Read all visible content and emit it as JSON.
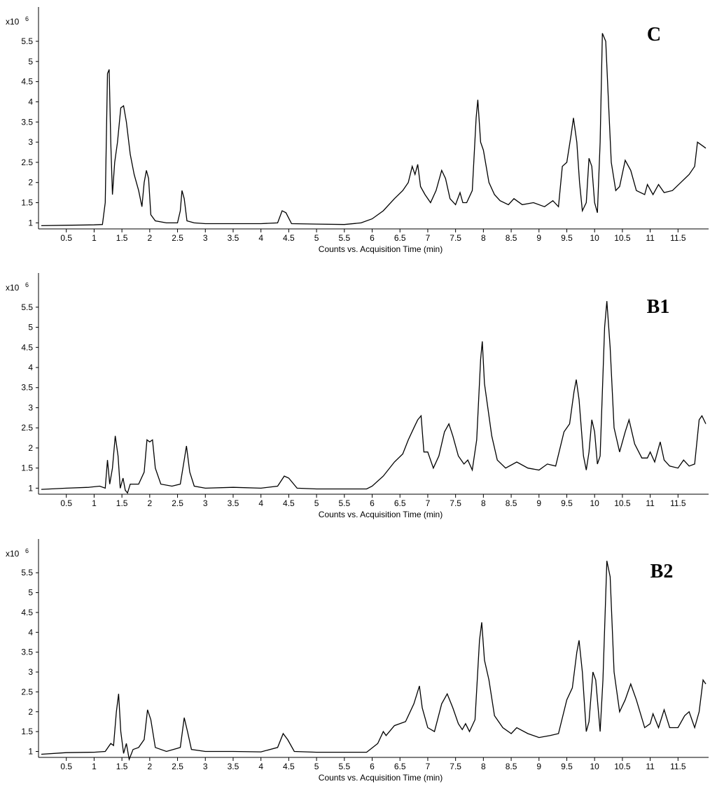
{
  "chart_data": [
    {
      "type": "line",
      "title": "C",
      "x_label": "Counts vs. Acquisition Time (min)",
      "y_label": "x10",
      "y_label_exponent": "6",
      "color": "#000000",
      "xlim": [
        0,
        12.05
      ],
      "ylim": [
        0.85,
        6.35
      ],
      "xticks": [
        0.5,
        1,
        1.5,
        2,
        2.5,
        3,
        3.5,
        4,
        4.5,
        5,
        5.5,
        6,
        6.5,
        7,
        7.5,
        8,
        8.5,
        9,
        9.5,
        10,
        10.5,
        11,
        11.5
      ],
      "yticks": [
        1,
        1.5,
        2,
        2.5,
        3,
        3.5,
        4,
        4.5,
        5,
        5.5
      ],
      "x": [
        0.05,
        0.5,
        1.0,
        1.15,
        1.2,
        1.24,
        1.27,
        1.3,
        1.33,
        1.37,
        1.42,
        1.48,
        1.53,
        1.58,
        1.65,
        1.72,
        1.8,
        1.86,
        1.9,
        1.94,
        1.98,
        2.02,
        2.1,
        2.3,
        2.5,
        2.55,
        2.58,
        2.62,
        2.67,
        2.8,
        3.0,
        3.5,
        4.0,
        4.3,
        4.38,
        4.45,
        4.55,
        5.0,
        5.5,
        5.8,
        6.0,
        6.2,
        6.4,
        6.55,
        6.65,
        6.72,
        6.77,
        6.82,
        6.87,
        6.95,
        7.05,
        7.15,
        7.25,
        7.32,
        7.4,
        7.5,
        7.58,
        7.63,
        7.7,
        7.8,
        7.87,
        7.9,
        7.95,
        8.0,
        8.1,
        8.2,
        8.3,
        8.45,
        8.55,
        8.7,
        8.9,
        9.1,
        9.25,
        9.35,
        9.42,
        9.5,
        9.58,
        9.62,
        9.68,
        9.73,
        9.78,
        9.85,
        9.9,
        9.95,
        10.0,
        10.05,
        10.1,
        10.14,
        10.2,
        10.25,
        10.3,
        10.38,
        10.45,
        10.55,
        10.65,
        10.75,
        10.9,
        10.95,
        11.05,
        11.15,
        11.25,
        11.4,
        11.55,
        11.7,
        11.8,
        11.85,
        11.95,
        12.0
      ],
      "values": [
        0.93,
        0.94,
        0.95,
        0.96,
        1.5,
        4.7,
        4.8,
        3.0,
        1.7,
        2.5,
        3.0,
        3.85,
        3.9,
        3.5,
        2.7,
        2.2,
        1.8,
        1.4,
        2.0,
        2.3,
        2.1,
        1.2,
        1.05,
        1.0,
        1.0,
        1.3,
        1.8,
        1.6,
        1.05,
        1.0,
        0.98,
        0.98,
        0.98,
        1.0,
        1.3,
        1.25,
        0.98,
        0.97,
        0.96,
        1.0,
        1.1,
        1.3,
        1.6,
        1.8,
        2.0,
        2.4,
        2.2,
        2.45,
        1.9,
        1.7,
        1.5,
        1.8,
        2.3,
        2.1,
        1.6,
        1.45,
        1.75,
        1.5,
        1.5,
        1.8,
        3.6,
        4.05,
        3.0,
        2.8,
        2.0,
        1.7,
        1.55,
        1.45,
        1.6,
        1.45,
        1.5,
        1.4,
        1.55,
        1.4,
        2.4,
        2.5,
        3.2,
        3.6,
        3.0,
        2.0,
        1.3,
        1.5,
        2.6,
        2.4,
        1.5,
        1.25,
        3.0,
        5.7,
        5.5,
        4.0,
        2.5,
        1.8,
        1.9,
        2.55,
        2.3,
        1.8,
        1.7,
        1.95,
        1.7,
        1.95,
        1.75,
        1.8,
        2.0,
        2.2,
        2.4,
        3.0,
        2.9,
        2.85
      ]
    },
    {
      "type": "line",
      "title": "B1",
      "x_label": "Counts vs. Acquisition Time (min)",
      "y_label": "x10",
      "y_label_exponent": "6",
      "color": "#000000",
      "xlim": [
        0,
        12.05
      ],
      "ylim": [
        0.85,
        6.35
      ],
      "xticks": [
        0.5,
        1,
        1.5,
        2,
        2.5,
        3,
        3.5,
        4,
        4.5,
        5,
        5.5,
        6,
        6.5,
        7,
        7.5,
        8,
        8.5,
        9,
        9.5,
        10,
        10.5,
        11,
        11.5
      ],
      "yticks": [
        1,
        1.5,
        2,
        2.5,
        3,
        3.5,
        4,
        4.5,
        5,
        5.5
      ],
      "x": [
        0.05,
        0.5,
        0.9,
        1.1,
        1.2,
        1.24,
        1.28,
        1.33,
        1.38,
        1.43,
        1.47,
        1.52,
        1.56,
        1.6,
        1.65,
        1.8,
        1.9,
        1.95,
        2.0,
        2.05,
        2.1,
        2.2,
        2.4,
        2.55,
        2.62,
        2.66,
        2.72,
        2.8,
        3.0,
        3.5,
        4.0,
        4.3,
        4.42,
        4.5,
        4.65,
        5.0,
        5.5,
        5.9,
        6.0,
        6.2,
        6.4,
        6.55,
        6.65,
        6.75,
        6.82,
        6.88,
        6.93,
        7.0,
        7.1,
        7.2,
        7.3,
        7.38,
        7.45,
        7.55,
        7.65,
        7.72,
        7.8,
        7.88,
        7.95,
        7.98,
        8.02,
        8.08,
        8.15,
        8.25,
        8.4,
        8.6,
        8.8,
        9.0,
        9.15,
        9.3,
        9.45,
        9.55,
        9.63,
        9.67,
        9.72,
        9.8,
        9.85,
        9.9,
        9.95,
        10.0,
        10.05,
        10.1,
        10.18,
        10.22,
        10.28,
        10.35,
        10.45,
        10.55,
        10.62,
        10.72,
        10.85,
        10.95,
        11.0,
        11.08,
        11.18,
        11.25,
        11.35,
        11.5,
        11.6,
        11.7,
        11.8,
        11.88,
        11.93,
        12.0
      ],
      "values": [
        0.97,
        1.0,
        1.02,
        1.05,
        1.0,
        1.7,
        1.1,
        1.5,
        2.3,
        1.8,
        1.0,
        1.25,
        0.95,
        0.88,
        1.1,
        1.1,
        1.4,
        2.2,
        2.15,
        2.2,
        1.5,
        1.1,
        1.05,
        1.1,
        1.7,
        2.05,
        1.4,
        1.05,
        1.0,
        1.02,
        1.0,
        1.05,
        1.3,
        1.25,
        1.0,
        0.98,
        0.98,
        0.98,
        1.05,
        1.3,
        1.65,
        1.85,
        2.2,
        2.5,
        2.7,
        2.8,
        1.9,
        1.9,
        1.5,
        1.8,
        2.4,
        2.6,
        2.3,
        1.8,
        1.6,
        1.7,
        1.45,
        2.2,
        4.2,
        4.65,
        3.6,
        3.0,
        2.3,
        1.7,
        1.5,
        1.65,
        1.5,
        1.45,
        1.6,
        1.55,
        2.4,
        2.6,
        3.4,
        3.7,
        3.2,
        1.8,
        1.45,
        1.9,
        2.7,
        2.4,
        1.6,
        1.8,
        5.0,
        5.65,
        4.5,
        2.5,
        1.9,
        2.4,
        2.7,
        2.1,
        1.75,
        1.75,
        1.9,
        1.65,
        2.15,
        1.7,
        1.55,
        1.5,
        1.7,
        1.55,
        1.6,
        2.7,
        2.8,
        2.6
      ]
    },
    {
      "type": "line",
      "title": "B2",
      "x_label": "Counts vs. Acquisition Time (min)",
      "y_label": "x10",
      "y_label_exponent": "6",
      "color": "#000000",
      "xlim": [
        0,
        12.05
      ],
      "ylim": [
        0.85,
        6.35
      ],
      "xticks": [
        0.5,
        1,
        1.5,
        2,
        2.5,
        3,
        3.5,
        4,
        4.5,
        5,
        5.5,
        6,
        6.5,
        7,
        7.5,
        8,
        8.5,
        9,
        9.5,
        10,
        10.5,
        11,
        11.5
      ],
      "yticks": [
        1,
        1.5,
        2,
        2.5,
        3,
        3.5,
        4,
        4.5,
        5,
        5.5
      ],
      "x": [
        0.05,
        0.5,
        1.0,
        1.2,
        1.3,
        1.35,
        1.4,
        1.44,
        1.48,
        1.53,
        1.58,
        1.63,
        1.7,
        1.8,
        1.9,
        1.96,
        2.02,
        2.1,
        2.3,
        2.55,
        2.62,
        2.68,
        2.75,
        3.0,
        3.5,
        4.0,
        4.3,
        4.4,
        4.48,
        4.6,
        5.0,
        5.5,
        5.9,
        6.1,
        6.2,
        6.25,
        6.4,
        6.6,
        6.75,
        6.85,
        6.9,
        7.0,
        7.12,
        7.25,
        7.35,
        7.45,
        7.55,
        7.62,
        7.68,
        7.75,
        7.85,
        7.93,
        7.97,
        8.02,
        8.1,
        8.2,
        8.35,
        8.5,
        8.6,
        8.8,
        9.0,
        9.2,
        9.35,
        9.5,
        9.6,
        9.68,
        9.72,
        9.78,
        9.85,
        9.9,
        9.97,
        10.02,
        10.1,
        10.15,
        10.22,
        10.28,
        10.35,
        10.45,
        10.55,
        10.65,
        10.75,
        10.9,
        11.0,
        11.05,
        11.15,
        11.25,
        11.35,
        11.5,
        11.62,
        11.7,
        11.8,
        11.88,
        11.95,
        12.0
      ],
      "values": [
        0.93,
        0.97,
        0.98,
        1.0,
        1.2,
        1.15,
        2.0,
        2.45,
        1.5,
        0.95,
        1.2,
        0.8,
        1.05,
        1.1,
        1.3,
        2.05,
        1.8,
        1.1,
        1.0,
        1.1,
        1.85,
        1.5,
        1.05,
        1.0,
        1.0,
        0.99,
        1.1,
        1.45,
        1.3,
        1.0,
        0.98,
        0.98,
        0.98,
        1.2,
        1.5,
        1.4,
        1.65,
        1.75,
        2.2,
        2.65,
        2.1,
        1.6,
        1.5,
        2.2,
        2.45,
        2.1,
        1.7,
        1.55,
        1.7,
        1.5,
        1.8,
        3.8,
        4.25,
        3.3,
        2.8,
        1.9,
        1.6,
        1.45,
        1.6,
        1.45,
        1.35,
        1.4,
        1.45,
        2.3,
        2.6,
        3.5,
        3.8,
        3.0,
        1.5,
        1.75,
        3.0,
        2.8,
        1.5,
        2.8,
        5.8,
        5.4,
        3.0,
        2.0,
        2.3,
        2.7,
        2.3,
        1.6,
        1.7,
        1.95,
        1.6,
        2.05,
        1.6,
        1.6,
        1.9,
        2.0,
        1.6,
        2.0,
        2.8,
        2.7
      ]
    }
  ]
}
